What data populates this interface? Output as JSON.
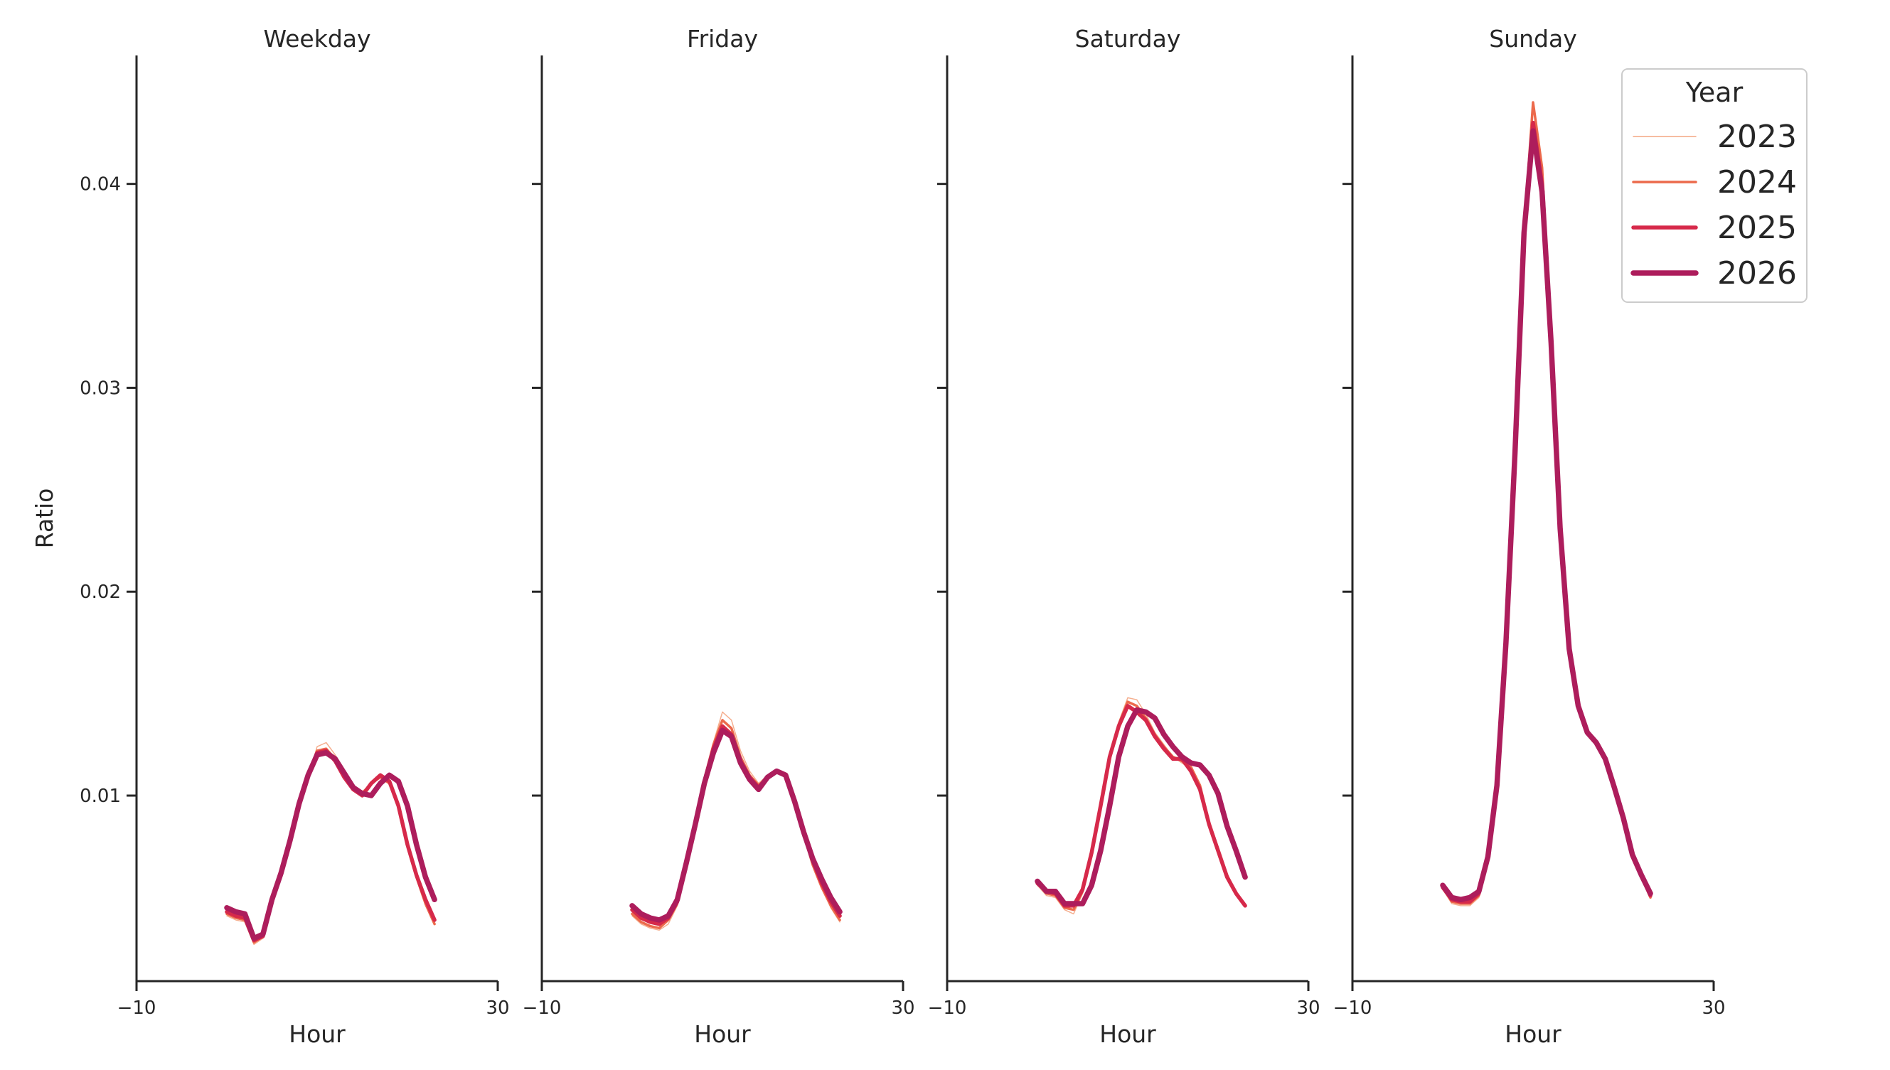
{
  "chart_data": {
    "type": "line",
    "facet_by": "day_type",
    "xlabel": "Hour",
    "ylabel": "Ratio",
    "xlim": [
      -10,
      30
    ],
    "ylim": [
      0.0009,
      0.0463
    ],
    "xticks": [
      -10,
      30
    ],
    "xtick_labels": [
      "−10",
      "30"
    ],
    "yticks": [
      0.01,
      0.02,
      0.03,
      0.04
    ],
    "ytick_labels": [
      "0.01",
      "0.02",
      "0.03",
      "0.04"
    ],
    "grid": false,
    "legend": {
      "title": "Year",
      "placement": "top-right",
      "entries": [
        {
          "label": "2023",
          "color": "#f4a582"
        },
        {
          "label": "2024",
          "color": "#ec6a4c"
        },
        {
          "label": "2025",
          "color": "#d6294a"
        },
        {
          "label": "2026",
          "color": "#ad1d5c"
        }
      ]
    },
    "x": [
      0,
      1,
      2,
      3,
      4,
      5,
      6,
      7,
      8,
      9,
      10,
      11,
      12,
      13,
      14,
      15,
      16,
      17,
      18,
      19,
      20,
      21,
      22,
      23
    ],
    "panels": [
      {
        "title": "Weekday",
        "series": [
          {
            "name": "2023",
            "values": [
              0.0041,
              0.0039,
              0.0038,
              0.0027,
              0.003,
              0.0048,
              0.006,
              0.0077,
              0.0095,
              0.0109,
              0.0124,
              0.0126,
              0.012,
              0.0112,
              0.0105,
              0.0102,
              0.0106,
              0.0109,
              0.0106,
              0.0095,
              0.0076,
              0.006,
              0.0046,
              0.0037
            ]
          },
          {
            "name": "2024",
            "values": [
              0.0042,
              0.004,
              0.0039,
              0.0028,
              0.0031,
              0.0049,
              0.0061,
              0.0078,
              0.0096,
              0.011,
              0.0122,
              0.0123,
              0.0118,
              0.011,
              0.0104,
              0.0101,
              0.0106,
              0.0109,
              0.0106,
              0.0095,
              0.0076,
              0.006,
              0.0047,
              0.0037
            ]
          },
          {
            "name": "2025",
            "values": [
              0.0043,
              0.0041,
              0.004,
              0.0029,
              0.0031,
              0.0049,
              0.0062,
              0.0078,
              0.0096,
              0.011,
              0.0121,
              0.0122,
              0.0117,
              0.0109,
              0.0103,
              0.01,
              0.0106,
              0.011,
              0.0107,
              0.0095,
              0.0076,
              0.0061,
              0.0049,
              0.0039
            ]
          },
          {
            "name": "2026",
            "values": [
              0.0045,
              0.0043,
              0.0042,
              0.003,
              0.0032,
              0.0049,
              0.0062,
              0.0078,
              0.0096,
              0.011,
              0.012,
              0.0121,
              0.0118,
              0.0111,
              0.0104,
              0.0101,
              0.01,
              0.0106,
              0.011,
              0.0107,
              0.0095,
              0.0076,
              0.006,
              0.0049
            ]
          }
        ]
      },
      {
        "title": "Friday",
        "series": [
          {
            "name": "2023",
            "values": [
              0.0041,
              0.0037,
              0.0035,
              0.0034,
              0.0037,
              0.0046,
              0.0064,
              0.0086,
              0.0109,
              0.0126,
              0.0141,
              0.0137,
              0.0122,
              0.0112,
              0.0106,
              0.011,
              0.0113,
              0.011,
              0.0097,
              0.0081,
              0.0066,
              0.0055,
              0.0045,
              0.0038
            ]
          },
          {
            "name": "2024",
            "values": [
              0.0042,
              0.0038,
              0.0036,
              0.0035,
              0.0039,
              0.0047,
              0.0065,
              0.0086,
              0.0108,
              0.0125,
              0.0137,
              0.0133,
              0.0119,
              0.011,
              0.0105,
              0.0109,
              0.0112,
              0.011,
              0.0097,
              0.0081,
              0.0066,
              0.0055,
              0.0046,
              0.0039
            ]
          },
          {
            "name": "2025",
            "values": [
              0.0044,
              0.004,
              0.0038,
              0.0037,
              0.004,
              0.0048,
              0.0066,
              0.0086,
              0.0107,
              0.0123,
              0.0134,
              0.013,
              0.0117,
              0.0109,
              0.0104,
              0.0109,
              0.0112,
              0.011,
              0.0097,
              0.0082,
              0.0068,
              0.0057,
              0.0048,
              0.0041
            ]
          },
          {
            "name": "2026",
            "values": [
              0.0046,
              0.0042,
              0.004,
              0.0039,
              0.0041,
              0.0049,
              0.0067,
              0.0086,
              0.0106,
              0.0121,
              0.0132,
              0.0129,
              0.0116,
              0.0108,
              0.0103,
              0.0109,
              0.0112,
              0.011,
              0.0097,
              0.0082,
              0.0069,
              0.0059,
              0.005,
              0.0043
            ]
          }
        ]
      },
      {
        "title": "Saturday",
        "series": [
          {
            "name": "2023",
            "values": [
              0.0056,
              0.0051,
              0.005,
              0.0044,
              0.0042,
              0.0052,
              0.0071,
              0.0095,
              0.0121,
              0.0136,
              0.0148,
              0.0147,
              0.014,
              0.0131,
              0.0125,
              0.0119,
              0.0116,
              0.0113,
              0.0104,
              0.0087,
              0.0074,
              0.0061,
              0.0052,
              0.0046
            ]
          },
          {
            "name": "2024",
            "values": [
              0.0057,
              0.0052,
              0.0051,
              0.0045,
              0.0044,
              0.0053,
              0.0072,
              0.0095,
              0.012,
              0.0135,
              0.0146,
              0.0144,
              0.0138,
              0.013,
              0.0124,
              0.0119,
              0.0117,
              0.0114,
              0.0105,
              0.0087,
              0.0074,
              0.0061,
              0.0052,
              0.0046
            ]
          },
          {
            "name": "2025",
            "values": [
              0.0057,
              0.0053,
              0.0052,
              0.0046,
              0.0046,
              0.0054,
              0.0072,
              0.0095,
              0.0119,
              0.0134,
              0.0144,
              0.0141,
              0.0137,
              0.0129,
              0.0123,
              0.0118,
              0.0118,
              0.0112,
              0.0103,
              0.0086,
              0.0073,
              0.006,
              0.0052,
              0.0046
            ]
          },
          {
            "name": "2026",
            "values": [
              0.0058,
              0.0053,
              0.0053,
              0.0047,
              0.0047,
              0.0047,
              0.0056,
              0.0073,
              0.0095,
              0.0119,
              0.0134,
              0.0142,
              0.0141,
              0.0138,
              0.013,
              0.0124,
              0.0119,
              0.0116,
              0.0115,
              0.011,
              0.0101,
              0.0085,
              0.0073,
              0.006
            ]
          }
        ]
      },
      {
        "title": "Sunday",
        "series": [
          {
            "name": "2023",
            "values": [
              0.0054,
              0.0047,
              0.0046,
              0.0046,
              0.005,
              0.0069,
              0.0104,
              0.0175,
              0.027,
              0.0375,
              0.0438,
              0.041,
              0.033,
              0.0235,
              0.0173,
              0.0145,
              0.0131,
              0.0127,
              0.0118,
              0.0104,
              0.0089,
              0.0071,
              0.006,
              0.005
            ]
          },
          {
            "name": "2024",
            "values": [
              0.0055,
              0.0048,
              0.0047,
              0.0047,
              0.0051,
              0.007,
              0.0105,
              0.0176,
              0.0272,
              0.0377,
              0.044,
              0.0408,
              0.0328,
              0.0233,
              0.0172,
              0.0144,
              0.0131,
              0.0126,
              0.0118,
              0.0104,
              0.0089,
              0.0071,
              0.006,
              0.005
            ]
          },
          {
            "name": "2025",
            "values": [
              0.0055,
              0.0049,
              0.0048,
              0.0048,
              0.0052,
              0.007,
              0.0105,
              0.0176,
              0.027,
              0.0376,
              0.043,
              0.04,
              0.0325,
              0.0232,
              0.0172,
              0.0144,
              0.0131,
              0.0126,
              0.0118,
              0.0104,
              0.0089,
              0.0071,
              0.0061,
              0.0051
            ]
          },
          {
            "name": "2026",
            "values": [
              0.0056,
              0.005,
              0.0049,
              0.005,
              0.0053,
              0.007,
              0.0105,
              0.0175,
              0.0268,
              0.0376,
              0.0426,
              0.0396,
              0.0322,
              0.0231,
              0.0172,
              0.0144,
              0.0131,
              0.0126,
              0.0118,
              0.0104,
              0.0089,
              0.0071,
              0.0061,
              0.0052
            ]
          }
        ]
      }
    ]
  }
}
